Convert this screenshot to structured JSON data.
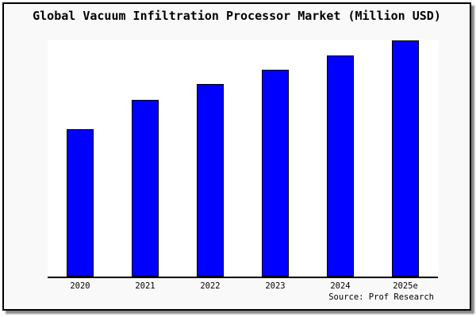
{
  "frame": {
    "background": "#f9f9f9",
    "border_color": "#000000",
    "shadow_color": "#888888"
  },
  "chart_data": {
    "type": "bar",
    "title": "Global Vacuum Infiltration Processor Market (Million USD)",
    "categories": [
      "2020",
      "2021",
      "2022",
      "2023",
      "2024",
      "2025e"
    ],
    "values": [
      62.4,
      74.8,
      81.4,
      87.5,
      93.6,
      100.0
    ],
    "ylim": [
      0,
      100.3
    ],
    "xlabel": "",
    "ylabel": "",
    "grid": false,
    "legend": null,
    "y_axis_labels_visible": false,
    "bar_fill": "#0000ff",
    "bar_edge": "#000000",
    "plot_background": "#ffffff",
    "source_label": "Source: Prof Research"
  }
}
